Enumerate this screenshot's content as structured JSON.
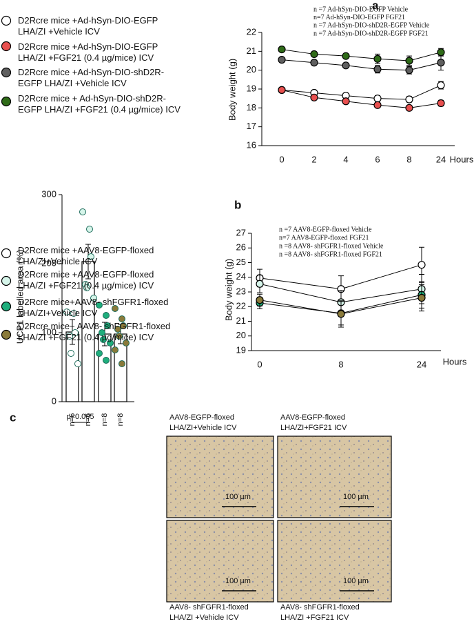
{
  "chart_data": [
    {
      "type": "line",
      "panel_label": "a",
      "ylabel": "Body weight (g)",
      "xlabel": "Hours",
      "categories": [
        "0",
        "2",
        "4",
        "6",
        "8",
        "24"
      ],
      "ylim": [
        16,
        22
      ],
      "yticks": [
        16,
        17,
        18,
        19,
        20,
        21,
        22
      ],
      "annotations": [
        "n =7 Ad-hSyn-DIO-EGFP  Vehicle",
        "n=7 Ad-hSyn-DIO-EGFP  FGF21",
        "n =7 Ad-hSyn-DIO-shD2R-EGFP Vehicle",
        "n =7 Ad-hSyn-DIO-shD2R-EGFP FGF21"
      ],
      "series": [
        {
          "name": "D2Rcre mice +Ad-hSyn-DIO-EGFP LHA/ZI +Vehicle ICV",
          "color": "#ffffff",
          "values": [
            18.95,
            18.8,
            18.65,
            18.5,
            18.45,
            19.2
          ],
          "errors": [
            0.08,
            0.08,
            0.1,
            0.15,
            0.15,
            0.2
          ]
        },
        {
          "name": "D2Rcre mice +Ad-hSyn-DIO-EGFP LHA/ZI +FGF21 (0.4 µg/mice) ICV",
          "color": "#e8504f",
          "values": [
            18.95,
            18.55,
            18.35,
            18.15,
            18.0,
            18.25
          ],
          "errors": [
            0.05,
            0.05,
            0.05,
            0.08,
            0.05,
            0.15
          ]
        },
        {
          "name": "D2Rcre mice +Ad-hSyn-DIO-shD2R-EGFP LHA/ZI +Vehicle ICV",
          "color": "#5f5f5f",
          "values": [
            20.55,
            20.4,
            20.25,
            20.05,
            20.0,
            20.4
          ],
          "errors": [
            0.05,
            0.08,
            0.1,
            0.2,
            0.2,
            0.4
          ]
        },
        {
          "name": "D2Rcre mice + Ad-hSyn-DIO-shD2R-EGFP LHA/ZI +FGF21 (0.4 µg/mice) ICV",
          "color": "#2f6b18",
          "values": [
            21.1,
            20.85,
            20.75,
            20.6,
            20.5,
            20.95
          ],
          "errors": [
            0.05,
            0.08,
            0.12,
            0.25,
            0.25,
            0.2
          ]
        }
      ]
    },
    {
      "type": "line",
      "panel_label": "b",
      "ylabel": "Body weight (g)",
      "xlabel": "Hours",
      "categories": [
        "0",
        "8",
        "24"
      ],
      "ylim": [
        19,
        27
      ],
      "yticks": [
        19,
        20,
        21,
        22,
        23,
        24,
        25,
        26,
        27
      ],
      "annotations": [
        "n =7 AAV8-EGFP-floxed Vehicle",
        "n=7 AAV8-EGFP-floxed FGF21",
        "n =8 AAV8- shFGFR1-floxed Vehicle",
        "n =8 AAV8- shFGFR1-floxed FGF21"
      ],
      "series": [
        {
          "name": "D2Rcre mice +AAV8-EGFP-floxed LHA/ZI+Vehicle ICV",
          "color": "#ffffff",
          "values": [
            23.95,
            23.2,
            24.85
          ],
          "errors": [
            0.6,
            0.9,
            1.2
          ]
        },
        {
          "name": "D2Rcre mice +AAV8-EGFP-floxed LHA/ZI +FGF21 (0.4 µg/mice) ICV",
          "color": "#d6f5ea",
          "values": [
            23.55,
            22.3,
            23.2
          ],
          "errors": [
            0.6,
            0.8,
            1.0
          ]
        },
        {
          "name": "D2Rcre mice+AAV8- shFGFR1-floxed LHA/ZI+Vehicle ICV",
          "color": "#1fae7c",
          "values": [
            22.25,
            21.55,
            22.8
          ],
          "errors": [
            0.4,
            0.8,
            0.9
          ]
        },
        {
          "name": "D2Rcre mice+ AAV8- shFGFR1-floxed LHA/ZI +FGF21 (0.4 µg/mice) ICV",
          "color": "#8a7a3a",
          "values": [
            22.45,
            21.5,
            22.6
          ],
          "errors": [
            0.4,
            0.9,
            0.9
          ]
        }
      ]
    },
    {
      "type": "bar",
      "panel_label": "c",
      "ylabel": "UCP1 labelled area (%)",
      "categories": [
        "n=6",
        "n=6",
        "n=8",
        "n=8"
      ],
      "ylim": [
        0,
        300
      ],
      "yticks": [
        0,
        100,
        200,
        300
      ],
      "annotations": [
        "p=0.005"
      ],
      "values": [
        101,
        203,
        98,
        98
      ],
      "errors": [
        18,
        25,
        17,
        14
      ],
      "point_colors": [
        "#ffffff",
        "#d6f5ea",
        "#1fae7c",
        "#8a7a3a"
      ],
      "points": [
        [
          130,
          128,
          100,
          95,
          70,
          55
        ],
        [
          275,
          250,
          210,
          170,
          165,
          150
        ],
        [
          140,
          125,
          110,
          100,
          90,
          85,
          70,
          60
        ],
        [
          135,
          120,
          110,
          105,
          95,
          85,
          75,
          55
        ]
      ]
    }
  ],
  "micrographs": [
    {
      "caption": [
        "AAV8-EGFP-floxed",
        "LHA/ZI+Vehicle ICV"
      ],
      "scale_bar": "100 µm"
    },
    {
      "caption": [
        "AAV8-EGFP-floxed",
        "LHA/ZI+FGF21 ICV"
      ],
      "scale_bar": "100 µm"
    },
    {
      "caption": [
        "AAV8- shFGFR1-floxed",
        "LHA/ZI +Vehicle ICV"
      ],
      "scale_bar": "100 µm"
    },
    {
      "caption": [
        "AAV8- shFGFR1-floxed",
        "LHA/ZI +FGF21 ICV"
      ],
      "scale_bar": "100 µm"
    }
  ]
}
